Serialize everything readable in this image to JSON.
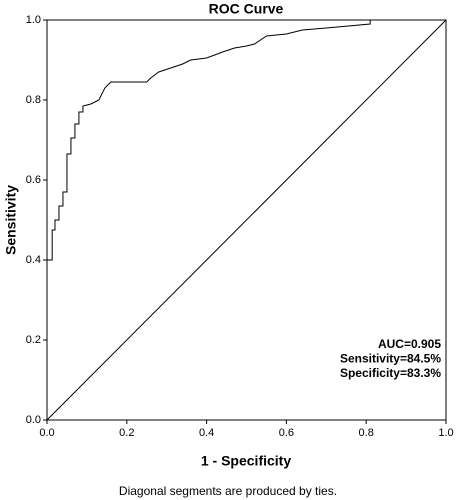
{
  "chart_data": {
    "type": "line",
    "title": "ROC Curve",
    "xlabel": "1 - Specificity",
    "ylabel": "Sensitivity",
    "footnote": "Diagonal segments are produced by ties.",
    "annotations": [
      "AUC=0.905",
      "Sensitivity=84.5%",
      "Specificity=83.3%"
    ],
    "color": "#000000",
    "x": [
      0,
      0,
      0.013,
      0.013,
      0.02,
      0.02,
      0.03,
      0.03,
      0.04,
      0.04,
      0.05,
      0.05,
      0.06,
      0.06,
      0.07,
      0.07,
      0.08,
      0.08,
      0.09,
      0.09,
      0.11,
      0.13,
      0.145,
      0.16,
      0.25,
      0.26,
      0.28,
      0.31,
      0.34,
      0.36,
      0.4,
      0.44,
      0.47,
      0.5,
      0.52,
      0.55,
      0.6,
      0.64,
      0.7,
      0.81,
      0.81,
      1
    ],
    "values": [
      0,
      0.4,
      0.4,
      0.475,
      0.475,
      0.5,
      0.5,
      0.535,
      0.535,
      0.57,
      0.57,
      0.665,
      0.665,
      0.705,
      0.705,
      0.74,
      0.74,
      0.77,
      0.77,
      0.785,
      0.79,
      0.8,
      0.83,
      0.845,
      0.845,
      0.855,
      0.87,
      0.88,
      0.89,
      0.9,
      0.905,
      0.92,
      0.93,
      0.935,
      0.94,
      0.96,
      0.965,
      0.975,
      0.98,
      0.99,
      1,
      1
    ],
    "xlim": [
      0,
      1
    ],
    "ylim": [
      0,
      1
    ],
    "xticks": [
      {
        "value": 0,
        "label": "0.0"
      },
      0.2,
      0.4,
      0.6,
      0.8,
      {
        "value": 1,
        "label": "1.0"
      }
    ],
    "yticks": [
      {
        "value": 0,
        "label": "0.0"
      },
      0.2,
      0.4,
      0.6,
      0.8,
      {
        "value": 1,
        "label": "1.0"
      }
    ],
    "diagonal": true
  }
}
